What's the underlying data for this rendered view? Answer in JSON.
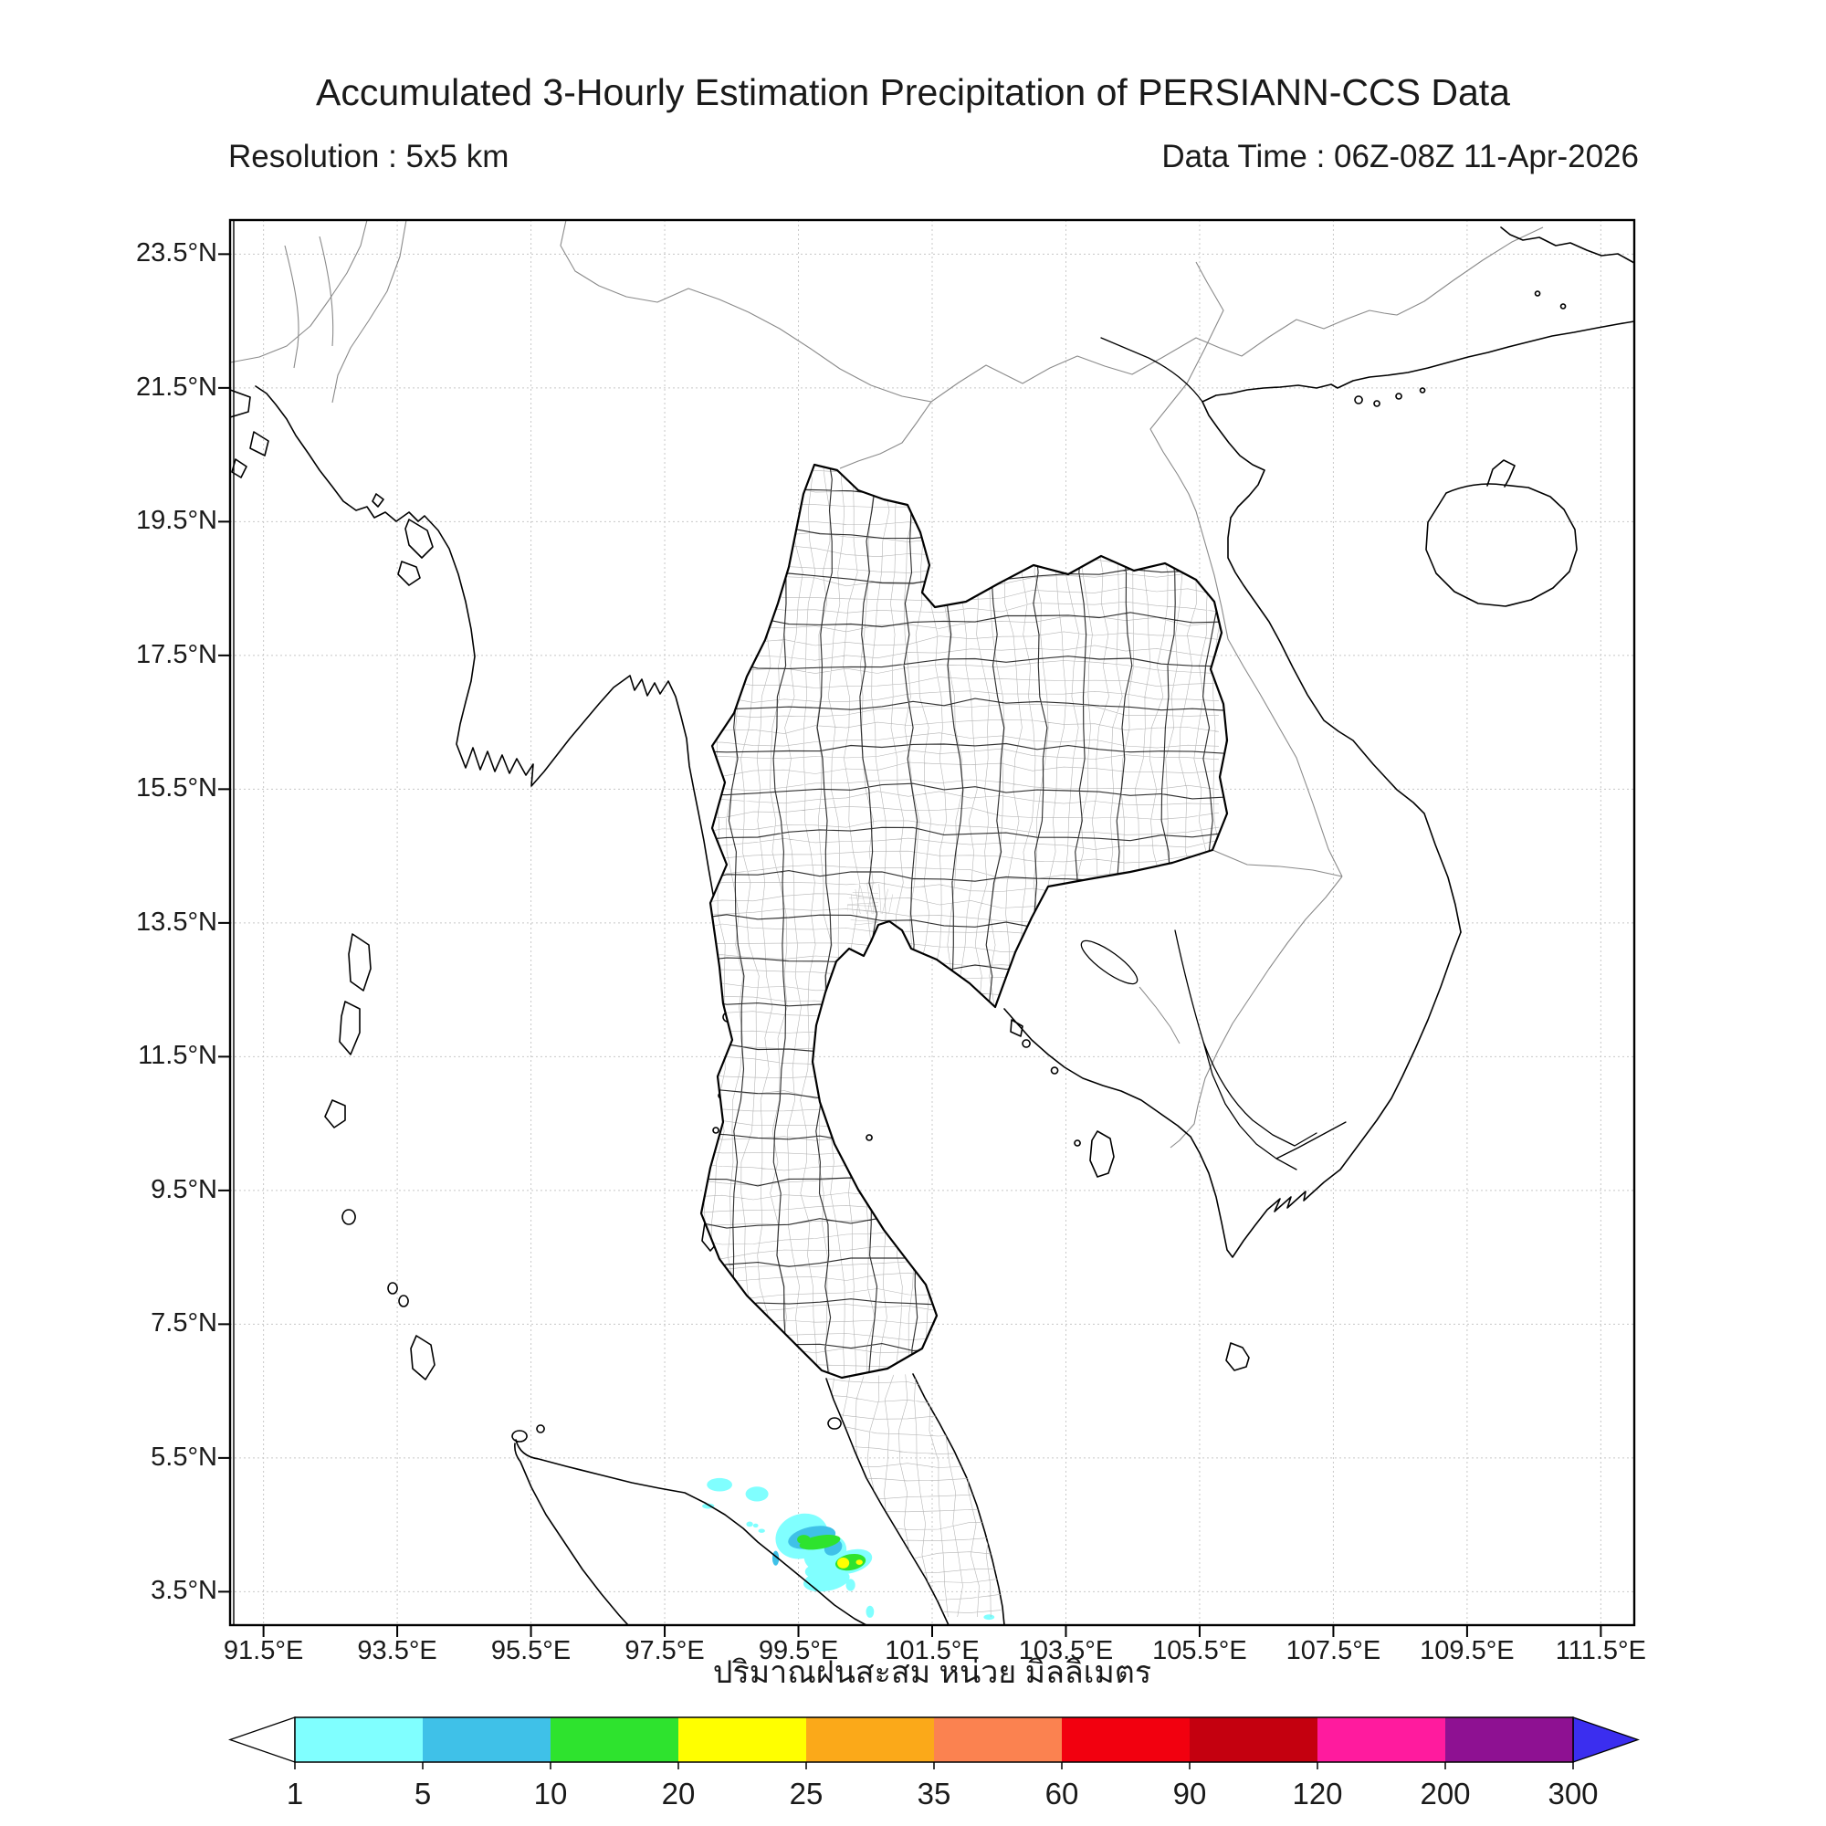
{
  "header": {
    "title": "Accumulated 3-Hourly Estimation Precipitation of PERSIANN-CCS Data",
    "resolution": "Resolution : 5x5 km",
    "data_time": "Data Time : 06Z-08Z 11-Apr-2026"
  },
  "map": {
    "xlabel_thai": "ปริมาณฝนสะสม หน่วย มิลลิเมตร"
  },
  "chart_data": {
    "type": "heatmap",
    "title": "Accumulated 3-Hourly Estimation Precipitation of PERSIANN-CCS Data",
    "region": "Thailand / Indochina",
    "units_label": "ปริมาณฝนสะสม หน่วย มิลลิเมตร",
    "units": "mm",
    "axis": {
      "lon_range": [
        91,
        112
      ],
      "lat_range": [
        3,
        24.01
      ],
      "grid": true,
      "x_ticks": [
        {
          "lon": 91.5,
          "label": "91.5°E"
        },
        {
          "lon": 93.5,
          "label": "93.5°E"
        },
        {
          "lon": 95.5,
          "label": "95.5°E"
        },
        {
          "lon": 97.5,
          "label": "97.5°E"
        },
        {
          "lon": 99.5,
          "label": "99.5°E"
        },
        {
          "lon": 101.5,
          "label": "101.5°E"
        },
        {
          "lon": 103.5,
          "label": "103.5°E"
        },
        {
          "lon": 105.5,
          "label": "105.5°E"
        },
        {
          "lon": 107.5,
          "label": "107.5°E"
        },
        {
          "lon": 109.5,
          "label": "109.5°E"
        },
        {
          "lon": 111.5,
          "label": "111.5°E"
        }
      ],
      "y_ticks": [
        {
          "lat": 23.5,
          "label": "23.5°N"
        },
        {
          "lat": 21.5,
          "label": "21.5°N"
        },
        {
          "lat": 19.5,
          "label": "19.5°N"
        },
        {
          "lat": 17.5,
          "label": "17.5°N"
        },
        {
          "lat": 15.5,
          "label": "15.5°N"
        },
        {
          "lat": 13.5,
          "label": "13.5°N"
        },
        {
          "lat": 11.5,
          "label": "11.5°N"
        },
        {
          "lat": 9.5,
          "label": "9.5°N"
        },
        {
          "lat": 7.5,
          "label": "7.5°N"
        },
        {
          "lat": 5.5,
          "label": "5.5°N"
        },
        {
          "lat": 3.5,
          "label": "3.5°N"
        }
      ]
    },
    "colorbar": {
      "values": [
        1,
        5,
        10,
        20,
        25,
        35,
        60,
        90,
        120,
        200,
        300
      ],
      "segment_colors": [
        "#80FFFF",
        "#3FC1E8",
        "#2EE32E",
        "#FFFF00",
        "#FBA919",
        "#FB8250",
        "#F2000F",
        "#C4000F",
        "#FF1B9E",
        "#8E1192"
      ],
      "under_color": "#FFFFFF",
      "over_color": "#3B2EEF"
    },
    "precip_cells": [
      {
        "lon": 98.32,
        "lat": 5.1,
        "rx": 0.19,
        "ry": 0.1,
        "rot": 0,
        "mm": 1
      },
      {
        "lon": 98.88,
        "lat": 4.96,
        "rx": 0.17,
        "ry": 0.11,
        "rot": 0,
        "mm": 1
      },
      {
        "lon": 98.15,
        "lat": 4.78,
        "rx": 0.09,
        "ry": 0.04,
        "rot": 0,
        "mm": 1
      },
      {
        "lon": 98.77,
        "lat": 4.51,
        "rx": 0.05,
        "ry": 0.04,
        "rot": 0,
        "mm": 1
      },
      {
        "lon": 98.86,
        "lat": 4.49,
        "rx": 0.04,
        "ry": 0.03,
        "rot": 0,
        "mm": 1
      },
      {
        "lon": 98.95,
        "lat": 4.41,
        "rx": 0.05,
        "ry": 0.03,
        "rot": 0,
        "mm": 1
      },
      {
        "lon": 99.55,
        "lat": 4.33,
        "rx": 0.4,
        "ry": 0.33,
        "rot": -20,
        "mm": 1
      },
      {
        "lon": 99.9,
        "lat": 4.08,
        "rx": 0.33,
        "ry": 0.26,
        "rot": -25,
        "mm": 1
      },
      {
        "lon": 100.28,
        "lat": 3.95,
        "rx": 0.33,
        "ry": 0.17,
        "rot": -15,
        "mm": 1
      },
      {
        "lon": 99.92,
        "lat": 3.67,
        "rx": 0.35,
        "ry": 0.16,
        "rot": -10,
        "mm": 1
      },
      {
        "lon": 99.75,
        "lat": 3.8,
        "rx": 0.15,
        "ry": 0.1,
        "rot": 0,
        "mm": 1
      },
      {
        "lon": 100.28,
        "lat": 3.6,
        "rx": 0.07,
        "ry": 0.09,
        "rot": 0,
        "mm": 1
      },
      {
        "lon": 100.57,
        "lat": 3.2,
        "rx": 0.06,
        "ry": 0.09,
        "rot": 0,
        "mm": 1
      },
      {
        "lon": 102.35,
        "lat": 3.12,
        "rx": 0.08,
        "ry": 0.04,
        "rot": 0,
        "mm": 1
      },
      {
        "lon": 99.7,
        "lat": 4.31,
        "rx": 0.36,
        "ry": 0.16,
        "rot": -12,
        "mm": 5
      },
      {
        "lon": 100.02,
        "lat": 4.16,
        "rx": 0.14,
        "ry": 0.11,
        "rot": -30,
        "mm": 5
      },
      {
        "lon": 99.16,
        "lat": 4.0,
        "rx": 0.05,
        "ry": 0.11,
        "rot": 0,
        "mm": 5
      },
      {
        "lon": 99.82,
        "lat": 4.24,
        "rx": 0.31,
        "ry": 0.1,
        "rot": -10,
        "mm": 10
      },
      {
        "lon": 99.58,
        "lat": 4.28,
        "rx": 0.1,
        "ry": 0.07,
        "rot": 0,
        "mm": 10
      },
      {
        "lon": 100.28,
        "lat": 3.94,
        "rx": 0.23,
        "ry": 0.12,
        "rot": -10,
        "mm": 10
      },
      {
        "lon": 100.17,
        "lat": 3.93,
        "rx": 0.09,
        "ry": 0.08,
        "rot": 0,
        "mm": 20
      },
      {
        "lon": 100.41,
        "lat": 3.94,
        "rx": 0.05,
        "ry": 0.04,
        "rot": 0,
        "mm": 20
      }
    ]
  },
  "colors": {
    "coastline": "#000000",
    "country_border": "#8a8a8a",
    "province_border": "#151515",
    "district_border": "#b5b5b5",
    "gridline": "#c8c8c8",
    "frame": "#000000"
  }
}
